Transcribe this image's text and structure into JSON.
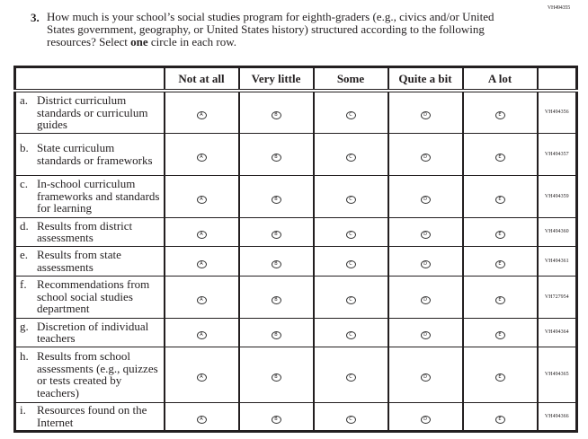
{
  "page_code": "VH494355",
  "question": {
    "number": "3.",
    "text_before": "How much is your school’s social studies program for eighth-graders (e.g., civics and/or United States government, geography, or United States history) structured according to the following resources? Select ",
    "text_bold": "one",
    "text_after": " circle in each row."
  },
  "columns": [
    "Not at all",
    "Very little",
    "Some",
    "Quite a bit",
    "A lot"
  ],
  "bubble_letters": [
    "A",
    "B",
    "C",
    "D",
    "E"
  ],
  "rows": [
    {
      "letter": "a.",
      "label": "District curriculum standards or curriculum guides",
      "code": "VH494356"
    },
    {
      "letter": "b.",
      "label": "State curriculum standards or frameworks",
      "code": "VH494357"
    },
    {
      "letter": "c.",
      "label": "In-school curriculum frameworks and standards for learning",
      "code": "VH494359"
    },
    {
      "letter": "d.",
      "label": "Results from district assessments",
      "code": "VH494360"
    },
    {
      "letter": "e.",
      "label": "Results from state assessments",
      "code": "VH494361"
    },
    {
      "letter": "f.",
      "label": "Recommendations from school social studies department",
      "code": "VH727954"
    },
    {
      "letter": "g.",
      "label": "Discretion of individual teachers",
      "code": "VH494364"
    },
    {
      "letter": "h.",
      "label": "Results from school assessments (e.g., quizzes or tests created by teachers)",
      "code": "VH494365"
    },
    {
      "letter": "i.",
      "label": "Resources found on the Internet",
      "code": "VH494366"
    }
  ]
}
